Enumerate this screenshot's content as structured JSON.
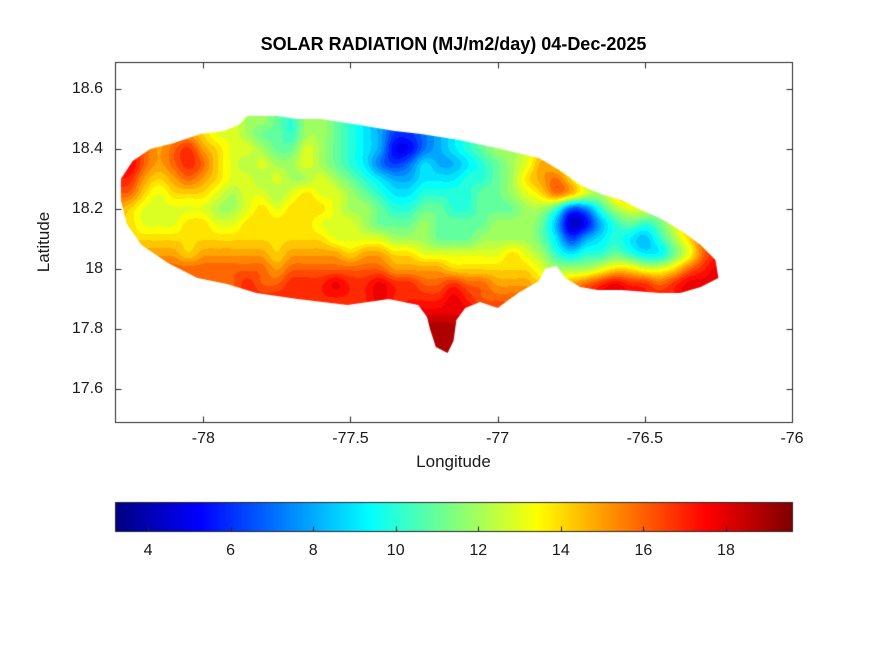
{
  "chart_data": {
    "type": "heatmap",
    "title": "SOLAR RADIATION (MJ/m2/day) 04-Dec-2025",
    "xlabel": "Longitude",
    "ylabel": "Latitude",
    "xlim": [
      -78.3,
      -76.0
    ],
    "ylim": [
      17.49,
      18.69
    ],
    "xticks": [
      -78,
      -77.5,
      -77,
      -76.5,
      -76
    ],
    "xtick_labels": [
      "-78",
      "-77.5",
      "-77",
      "-76.5",
      "-76"
    ],
    "yticks": [
      17.6,
      17.8,
      18,
      18.2,
      18.4,
      18.6
    ],
    "ytick_labels": [
      "17.6",
      "17.8",
      "18",
      "18.2",
      "18.4",
      "18.6"
    ],
    "clim": [
      3.2,
      19.6
    ],
    "colormap": {
      "name": "jet",
      "stops": [
        {
          "pos": 0,
          "rgb": [
            0,
            0,
            128
          ]
        },
        {
          "pos": 0.125,
          "rgb": [
            0,
            0,
            255
          ]
        },
        {
          "pos": 0.375,
          "rgb": [
            0,
            255,
            255
          ]
        },
        {
          "pos": 0.625,
          "rgb": [
            255,
            255,
            0
          ]
        },
        {
          "pos": 0.875,
          "rgb": [
            255,
            0,
            0
          ]
        },
        {
          "pos": 1,
          "rgb": [
            128,
            0,
            0
          ]
        }
      ]
    },
    "colorbar": {
      "orientation": "horizontal",
      "ticks": [
        4,
        6,
        8,
        10,
        12,
        14,
        16,
        18
      ],
      "tick_labels": [
        "4",
        "6",
        "8",
        "10",
        "12",
        "14",
        "16",
        "18"
      ]
    },
    "grid": {
      "lon_start": -78.3,
      "lon_step": 0.05,
      "ncols": 43,
      "lat_start": 18.55,
      "lat_step": -0.05,
      "nrows": 18,
      "units": "MJ/m2/day",
      "values": [
        [
          13,
          13,
          13,
          13,
          13,
          13,
          13,
          13,
          13,
          12,
          12,
          11,
          11,
          12,
          12,
          11,
          10,
          10,
          9,
          8,
          7,
          7,
          8,
          9,
          10,
          11,
          12,
          12,
          13,
          13,
          13,
          13,
          12,
          12,
          13,
          13,
          13,
          13,
          13,
          13,
          13,
          13,
          13
        ],
        [
          14,
          14,
          14,
          14,
          14,
          14,
          14,
          13,
          13,
          12,
          12,
          11,
          10,
          12,
          12,
          11,
          10,
          9,
          8,
          7,
          6,
          7,
          8,
          9,
          10,
          11,
          12,
          13,
          13,
          14,
          14,
          13,
          12,
          12,
          13,
          14,
          14,
          13,
          13,
          13,
          13,
          13,
          13
        ],
        [
          15,
          16,
          16,
          15,
          15,
          15,
          14,
          13,
          13,
          12,
          11,
          11,
          10,
          12,
          12,
          11,
          10,
          9,
          8,
          6,
          6,
          7,
          8,
          9,
          10,
          11,
          12,
          13,
          13,
          14,
          15,
          14,
          13,
          13,
          14,
          15,
          15,
          14,
          13,
          13,
          13,
          13,
          13
        ],
        [
          16,
          17,
          16,
          15,
          16,
          17,
          15,
          14,
          13,
          13,
          12,
          11,
          11,
          13,
          12,
          11,
          10,
          9,
          8,
          5,
          5,
          7,
          8,
          9,
          10,
          11,
          12,
          12,
          13,
          14,
          15,
          15,
          14,
          13,
          14,
          15,
          15,
          14,
          13,
          12,
          12,
          12,
          12
        ],
        [
          17,
          18,
          16,
          15,
          16,
          17,
          16,
          14,
          13,
          12,
          13,
          12,
          12,
          13,
          12,
          11,
          10,
          9,
          7,
          6,
          7,
          9,
          8,
          8,
          9,
          10,
          11,
          12,
          13,
          15,
          14,
          13,
          12,
          12,
          13,
          14,
          14,
          13,
          12,
          11,
          11,
          11,
          11
        ],
        [
          17,
          17,
          15,
          14,
          15,
          16,
          15,
          14,
          13,
          13,
          12,
          13,
          12,
          12,
          13,
          12,
          11,
          10,
          9,
          8,
          8,
          9,
          9,
          9,
          10,
          10,
          11,
          12,
          14,
          15,
          16,
          14,
          12,
          11,
          12,
          13,
          13,
          12,
          11,
          10,
          10,
          10,
          10
        ],
        [
          16,
          16,
          14,
          13,
          14,
          14,
          14,
          13,
          12,
          13,
          13,
          12,
          13,
          14,
          13,
          13,
          12,
          11,
          10,
          9,
          9,
          10,
          10,
          10,
          10,
          11,
          11,
          12,
          13,
          14,
          16,
          15,
          13,
          12,
          14,
          15,
          14,
          12,
          11,
          10,
          10,
          10,
          10
        ],
        [
          15,
          14,
          13,
          13,
          13,
          13,
          13,
          12,
          12,
          13,
          14,
          13,
          14,
          14,
          14,
          13,
          12,
          12,
          11,
          10,
          10,
          11,
          11,
          10,
          10,
          11,
          11,
          11,
          12,
          12,
          10,
          6,
          7,
          10,
          12,
          13,
          13,
          12,
          14,
          13,
          12,
          11,
          11
        ],
        [
          14,
          14,
          13,
          13,
          13,
          14,
          14,
          13,
          13,
          14,
          14,
          14,
          14,
          14,
          13,
          13,
          13,
          12,
          11,
          11,
          11,
          12,
          11,
          11,
          11,
          11,
          12,
          12,
          12,
          11,
          8,
          4,
          5,
          8,
          10,
          11,
          10,
          11,
          13,
          15,
          14,
          13,
          12
        ],
        [
          14,
          14,
          14,
          14,
          14,
          14,
          14,
          14,
          14,
          14,
          14,
          14,
          14,
          14,
          14,
          13,
          13,
          13,
          13,
          12,
          12,
          12,
          11,
          11,
          11,
          12,
          12,
          12,
          12,
          11,
          9,
          6,
          8,
          9,
          10,
          9,
          8,
          10,
          12,
          14,
          16,
          15,
          14
        ],
        [
          15,
          15,
          15,
          15,
          15,
          14,
          15,
          15,
          15,
          15,
          15,
          14,
          15,
          15,
          15,
          15,
          14,
          15,
          15,
          14,
          14,
          13,
          13,
          13,
          13,
          13,
          13,
          14,
          13,
          12,
          10,
          9,
          10,
          10,
          11,
          10,
          9,
          9,
          11,
          13,
          16,
          17,
          16
        ],
        [
          15,
          15,
          15,
          16,
          16,
          16,
          16,
          16,
          16,
          16,
          16,
          15,
          16,
          16,
          16,
          16,
          16,
          16,
          16,
          15,
          15,
          15,
          15,
          14,
          14,
          14,
          14,
          14,
          14,
          13,
          12,
          12,
          12,
          13,
          14,
          14,
          13,
          13,
          14,
          16,
          17,
          18,
          17
        ],
        [
          16,
          16,
          16,
          16,
          16,
          16,
          16,
          16,
          16,
          17,
          16,
          16,
          17,
          17,
          17,
          18,
          17,
          17,
          18,
          17,
          17,
          16,
          16,
          17,
          16,
          16,
          15,
          15,
          15,
          14,
          14,
          15,
          16,
          17,
          18,
          17,
          17,
          16,
          17,
          18,
          18,
          18,
          18
        ],
        [
          16,
          16,
          16,
          16,
          16,
          16,
          16,
          16,
          16,
          17,
          17,
          17,
          17,
          17,
          17,
          17,
          17,
          17,
          18,
          17,
          17,
          17,
          17,
          18,
          17,
          16,
          16,
          16,
          16,
          15,
          15,
          16,
          17,
          18,
          18,
          18,
          17,
          17,
          17,
          18,
          18,
          18,
          18
        ],
        [
          16,
          16,
          16,
          16,
          16,
          16,
          16,
          16,
          16,
          17,
          17,
          17,
          17,
          17,
          17,
          17,
          17,
          17,
          17,
          17,
          18,
          18,
          18,
          18,
          18,
          17,
          17,
          16,
          16,
          16,
          16,
          16,
          17,
          18,
          18,
          18,
          17,
          17,
          17,
          18,
          18,
          18,
          18
        ],
        [
          16,
          16,
          16,
          16,
          16,
          16,
          16,
          16,
          16,
          17,
          17,
          17,
          17,
          17,
          17,
          17,
          17,
          17,
          17,
          18,
          18,
          19,
          19,
          19,
          18,
          17,
          17,
          17,
          17,
          17,
          17,
          17,
          17,
          18,
          18,
          18,
          18,
          18,
          18,
          18,
          18,
          18,
          18
        ],
        [
          17,
          17,
          17,
          17,
          17,
          17,
          17,
          17,
          17,
          17,
          17,
          17,
          17,
          17,
          17,
          17,
          17,
          17,
          18,
          18,
          19,
          19,
          19,
          19,
          18,
          18,
          17,
          17,
          17,
          17,
          17,
          17,
          17,
          18,
          18,
          18,
          18,
          18,
          18,
          18,
          18,
          18,
          18
        ],
        [
          17,
          17,
          17,
          17,
          17,
          17,
          17,
          17,
          17,
          17,
          17,
          17,
          17,
          17,
          17,
          17,
          17,
          17,
          18,
          18,
          19,
          19,
          19,
          19,
          18,
          18,
          18,
          18,
          18,
          18,
          18,
          18,
          18,
          18,
          18,
          18,
          18,
          18,
          18,
          18,
          18,
          18,
          18
        ]
      ]
    },
    "region": {
      "name": "island-outline",
      "outline": [
        [
          -78.28,
          18.3
        ],
        [
          -78.24,
          18.36
        ],
        [
          -78.18,
          18.4
        ],
        [
          -78.1,
          18.42
        ],
        [
          -78.01,
          18.45
        ],
        [
          -77.93,
          18.46
        ],
        [
          -77.88,
          18.48
        ],
        [
          -77.85,
          18.51
        ],
        [
          -77.75,
          18.51
        ],
        [
          -77.68,
          18.5
        ],
        [
          -77.6,
          18.5
        ],
        [
          -77.47,
          18.48
        ],
        [
          -77.35,
          18.46
        ],
        [
          -77.26,
          18.45
        ],
        [
          -77.13,
          18.43
        ],
        [
          -76.99,
          18.4
        ],
        [
          -76.86,
          18.37
        ],
        [
          -76.79,
          18.33
        ],
        [
          -76.72,
          18.28
        ],
        [
          -76.65,
          18.25
        ],
        [
          -76.58,
          18.23
        ],
        [
          -76.52,
          18.2
        ],
        [
          -76.45,
          18.17
        ],
        [
          -76.38,
          18.13
        ],
        [
          -76.31,
          18.08
        ],
        [
          -76.26,
          18.03
        ],
        [
          -76.25,
          17.97
        ],
        [
          -76.31,
          17.94
        ],
        [
          -76.38,
          17.92
        ],
        [
          -76.45,
          17.92
        ],
        [
          -76.58,
          17.93
        ],
        [
          -76.66,
          17.93
        ],
        [
          -76.72,
          17.94
        ],
        [
          -76.77,
          17.97
        ],
        [
          -76.8,
          18.01
        ],
        [
          -76.84,
          18.0
        ],
        [
          -76.86,
          17.96
        ],
        [
          -76.93,
          17.92
        ],
        [
          -77.0,
          17.87
        ],
        [
          -77.06,
          17.89
        ],
        [
          -77.11,
          17.87
        ],
        [
          -77.14,
          17.83
        ],
        [
          -77.15,
          17.76
        ],
        [
          -77.17,
          17.72
        ],
        [
          -77.21,
          17.74
        ],
        [
          -77.23,
          17.8
        ],
        [
          -77.24,
          17.84
        ],
        [
          -77.27,
          17.88
        ],
        [
          -77.37,
          17.9
        ],
        [
          -77.51,
          17.88
        ],
        [
          -77.68,
          17.9
        ],
        [
          -77.82,
          17.92
        ],
        [
          -77.92,
          17.95
        ],
        [
          -78.02,
          17.97
        ],
        [
          -78.12,
          18.02
        ],
        [
          -78.21,
          18.08
        ],
        [
          -78.26,
          18.15
        ],
        [
          -78.28,
          18.23
        ]
      ]
    },
    "axis_color": "#262626",
    "background": "#ffffff"
  }
}
